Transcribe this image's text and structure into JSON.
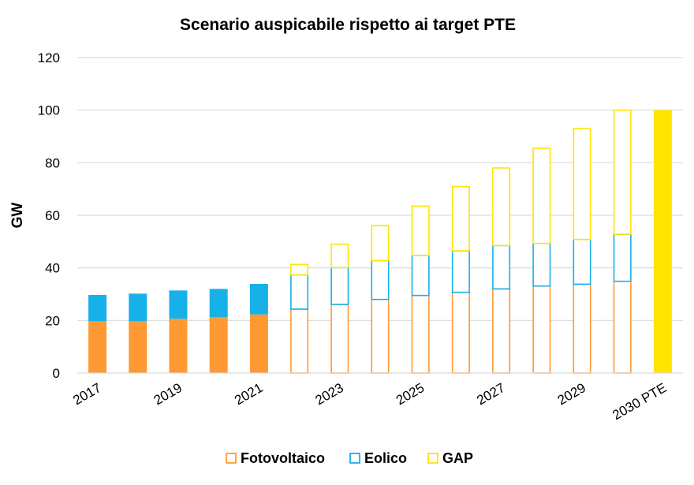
{
  "chart_data": {
    "type": "bar",
    "stacked": true,
    "title": "Scenario auspicabile rispetto ai target PTE",
    "ylabel": "GW",
    "xlabel": "",
    "ylim": [
      0,
      120
    ],
    "yticks": [
      "0",
      "20",
      "40",
      "60",
      "80",
      "100",
      "120"
    ],
    "grid": true,
    "legend_position": "bottom",
    "categories": [
      "2017",
      "2018",
      "2019",
      "2020",
      "2021",
      "2022",
      "2023",
      "2024",
      "2025",
      "2026",
      "2027",
      "2028",
      "2029",
      "2030",
      "2030 PTE"
    ],
    "x_tick_labels": [
      "2017",
      "",
      "2019",
      "",
      "2021",
      "",
      "2023",
      "",
      "2025",
      "",
      "2027",
      "",
      "2029",
      "",
      "2030 PTE"
    ],
    "series": [
      {
        "name": "Fotovoltaico",
        "color": "#FF9933",
        "values": [
          19.7,
          19.7,
          20.6,
          21.2,
          22.3,
          24.3,
          26.1,
          28.0,
          29.5,
          30.7,
          32.0,
          33.1,
          33.8,
          34.9,
          0
        ]
      },
      {
        "name": "Eolico",
        "color": "#17B1EA",
        "values": [
          10.0,
          10.5,
          10.8,
          10.8,
          11.6,
          13.0,
          14.0,
          14.8,
          15.2,
          15.8,
          16.5,
          16.2,
          17.0,
          17.9,
          0
        ]
      },
      {
        "name": "GAP",
        "color": "#FFE400",
        "values": [
          0,
          0,
          0,
          0,
          0,
          4.0,
          8.9,
          13.3,
          18.8,
          24.4,
          29.5,
          36.2,
          42.2,
          47.2,
          100
        ]
      }
    ],
    "bar_styles": [
      "solid",
      "solid",
      "solid",
      "solid",
      "solid",
      "outline",
      "outline",
      "outline",
      "outline",
      "outline",
      "outline",
      "outline",
      "outline",
      "outline",
      "solid"
    ]
  }
}
